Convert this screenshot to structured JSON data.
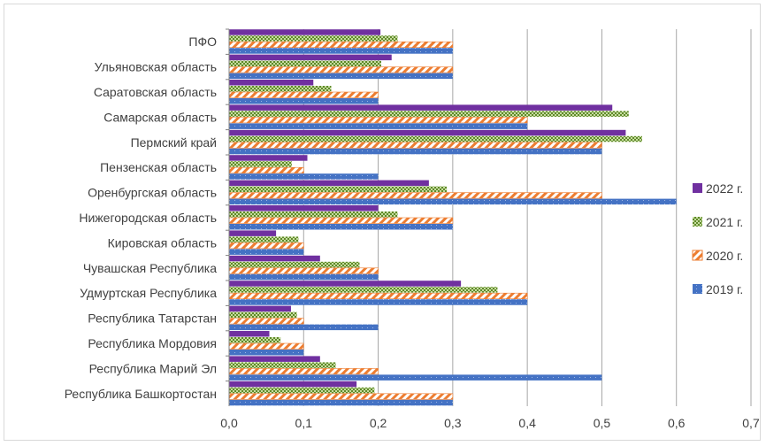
{
  "chart_data": {
    "type": "bar",
    "orientation": "horizontal",
    "categories": [
      "ПФО",
      "Ульяновская область",
      "Саратовская область",
      "Самарская область",
      "Пермский край",
      "Пензенская область",
      "Оренбургская область",
      "Нижегородская область",
      "Кировская область",
      "Чувашская Республика",
      "Удмуртская Республика",
      "Республика Татарстан",
      "Республика Мордовия",
      "Республика Марий Эл",
      "Республика Башкортостан"
    ],
    "series": [
      {
        "name": "2022 г.",
        "color": "#7030a0",
        "pattern": "solid",
        "values": [
          0.203,
          0.218,
          0.113,
          0.514,
          0.532,
          0.105,
          0.268,
          0.2,
          0.063,
          0.122,
          0.311,
          0.083,
          0.054,
          0.122,
          0.171
        ]
      },
      {
        "name": "2021 г.",
        "color": "#77a33a",
        "pattern": "checker",
        "values": [
          0.226,
          0.204,
          0.137,
          0.536,
          0.554,
          0.084,
          0.292,
          0.226,
          0.093,
          0.175,
          0.36,
          0.091,
          0.069,
          0.143,
          0.195
        ]
      },
      {
        "name": "2020 г.",
        "color": "#ed7d31",
        "pattern": "diagonal",
        "values": [
          0.3,
          0.3,
          0.2,
          0.4,
          0.5,
          0.1,
          0.5,
          0.3,
          0.1,
          0.2,
          0.4,
          0.1,
          0.1,
          0.2,
          0.3
        ]
      },
      {
        "name": "2019 г.",
        "color": "#4472c4",
        "pattern": "dotted",
        "values": [
          0.3,
          0.3,
          0.2,
          0.4,
          0.5,
          0.2,
          0.6,
          0.3,
          0.1,
          0.2,
          0.4,
          0.2,
          0.1,
          0.5,
          0.3
        ]
      }
    ],
    "xlim": [
      0,
      0.7
    ],
    "x_ticks": [
      "0,0",
      "0,1",
      "0,2",
      "0,3",
      "0,4",
      "0,5",
      "0,6",
      "0,7"
    ],
    "grid": "vertical",
    "legend": {
      "placement": "right",
      "order": [
        "2022 г.",
        "2021 г.",
        "2020 г.",
        "2019 г."
      ]
    },
    "title": "",
    "xlabel": "",
    "ylabel": ""
  }
}
